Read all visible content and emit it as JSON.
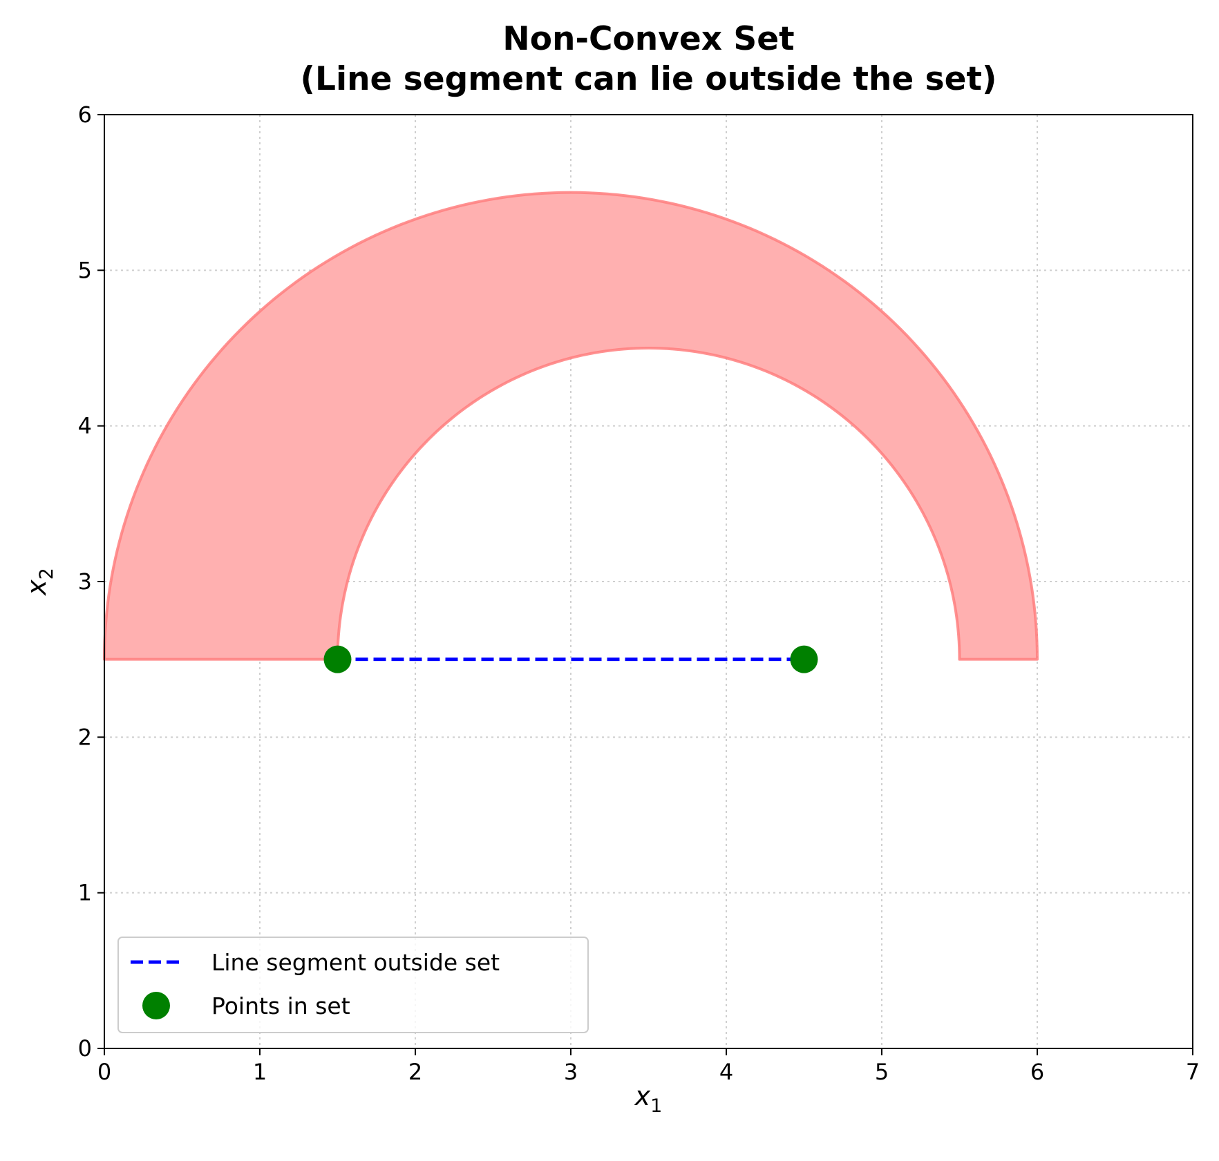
{
  "chart_data": {
    "type": "line",
    "title": "Non-Convex Set\n(Line segment can lie outside the set)",
    "title_lines": [
      "Non-Convex Set",
      "(Line segment can lie outside the set)"
    ],
    "xlabel": {
      "base": "x",
      "sub": "1"
    },
    "ylabel": {
      "base": "x",
      "sub": "2"
    },
    "xlim": [
      0,
      7
    ],
    "ylim": [
      0,
      6
    ],
    "xticks": [
      0,
      1,
      2,
      3,
      4,
      5,
      6,
      7
    ],
    "yticks": [
      0,
      1,
      2,
      3,
      4,
      5,
      6
    ],
    "grid": true,
    "legend_position": "lower-left",
    "region": {
      "shape": "half-annulus",
      "baseline_y": 2.5,
      "outer_center": [
        3.0,
        2.5
      ],
      "outer_radius": 3.0,
      "inner_center": [
        3.5,
        2.5
      ],
      "inner_radius": 2.0,
      "fill_color": "#ffb0b0",
      "edge_color": "#ff7f7f"
    },
    "series": [
      {
        "name": "Line segment outside set",
        "kind": "dashed-line",
        "color": "#0000ff",
        "x": [
          1.5,
          4.5
        ],
        "y": [
          2.5,
          2.5
        ]
      },
      {
        "name": "Points in set",
        "kind": "markers",
        "color": "#008000",
        "x": [
          1.5,
          4.5
        ],
        "y": [
          2.5,
          2.5
        ]
      }
    ]
  }
}
